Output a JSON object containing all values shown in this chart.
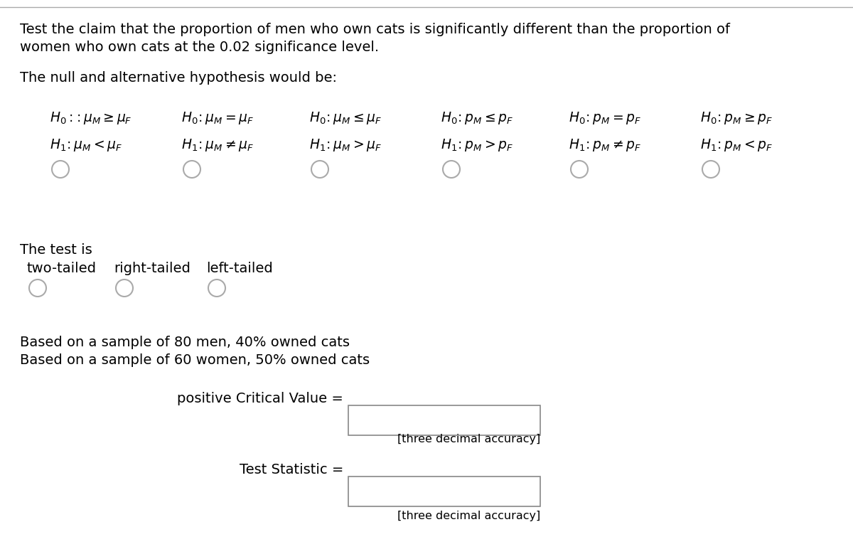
{
  "bg_color": "#ffffff",
  "top_line_color": "#aaaaaa",
  "title_line1": "Test the claim that the proportion of men who own cats is significantly different than the proportion of",
  "title_line2": "women who own cats at the 0.02 significance level.",
  "hypothesis_label": "The null and alternative hypothesis would be:",
  "hypothesis_h0": [
    "H_0:\\!:\\mu_M \\geq \\mu_F",
    "H_0\\!:\\mu_M = \\mu_F",
    "H_0\\!:\\mu_M \\leq \\mu_F",
    "H_0\\!:p_M \\leq p_F",
    "H_0\\!:p_M = p_F",
    "H_0\\!:p_M \\geq p_F"
  ],
  "hypothesis_h1": [
    "H_1\\!:\\mu_M < \\mu_F",
    "H_1\\!:\\mu_M \\neq \\mu_F",
    "H_1\\!:\\mu_M > \\mu_F",
    "H_1\\!:p_M > p_F",
    "H_1\\!:p_M \\neq p_F",
    "H_1\\!:p_M < p_F"
  ],
  "test_is_label": "The test is",
  "test_types": [
    "two-tailed",
    "right-tailed",
    "left-tailed"
  ],
  "sample_text1": "Based on a sample of 80 men, 40% owned cats",
  "sample_text2": "Based on a sample of 60 women, 50% owned cats",
  "critical_value_label": "positive Critical Value =",
  "test_statistic_label": "Test Statistic =",
  "accuracy_note": "[three decimal accuracy]",
  "box_color": "#ffffff",
  "box_edge_color": "#888888",
  "circle_color": "#ffffff",
  "circle_edge_color": "#aaaaaa",
  "text_color": "#000000",
  "font_size_title": 14,
  "font_size_body": 14,
  "font_size_math": 13.5,
  "font_size_small": 11.5
}
